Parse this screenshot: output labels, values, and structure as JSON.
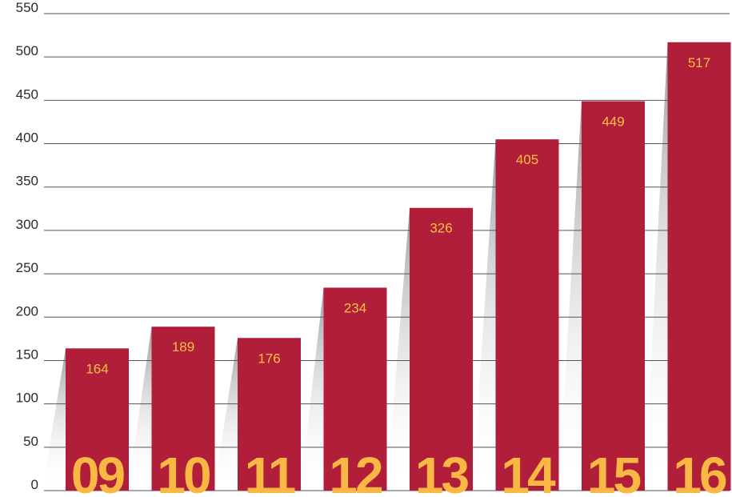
{
  "chart_data": {
    "type": "bar",
    "categories": [
      "09",
      "10",
      "11",
      "12",
      "13",
      "14",
      "15",
      "16"
    ],
    "values": [
      164,
      189,
      176,
      234,
      326,
      405,
      449,
      517
    ],
    "data_labels": [
      "164",
      "189",
      "176",
      "234",
      "326",
      "405",
      "449",
      "517"
    ],
    "yticks": [
      "0",
      "50",
      "100",
      "150",
      "200",
      "250",
      "300",
      "350",
      "400",
      "450",
      "500",
      "550"
    ],
    "ylim": [
      0,
      550
    ],
    "grid": true,
    "legend": "none",
    "colors": {
      "bar": "#b01e3a",
      "data_label": "#f5c242",
      "category_label": "#f9b844",
      "grid": "#555555",
      "shadow": "#8a8a8a"
    }
  }
}
